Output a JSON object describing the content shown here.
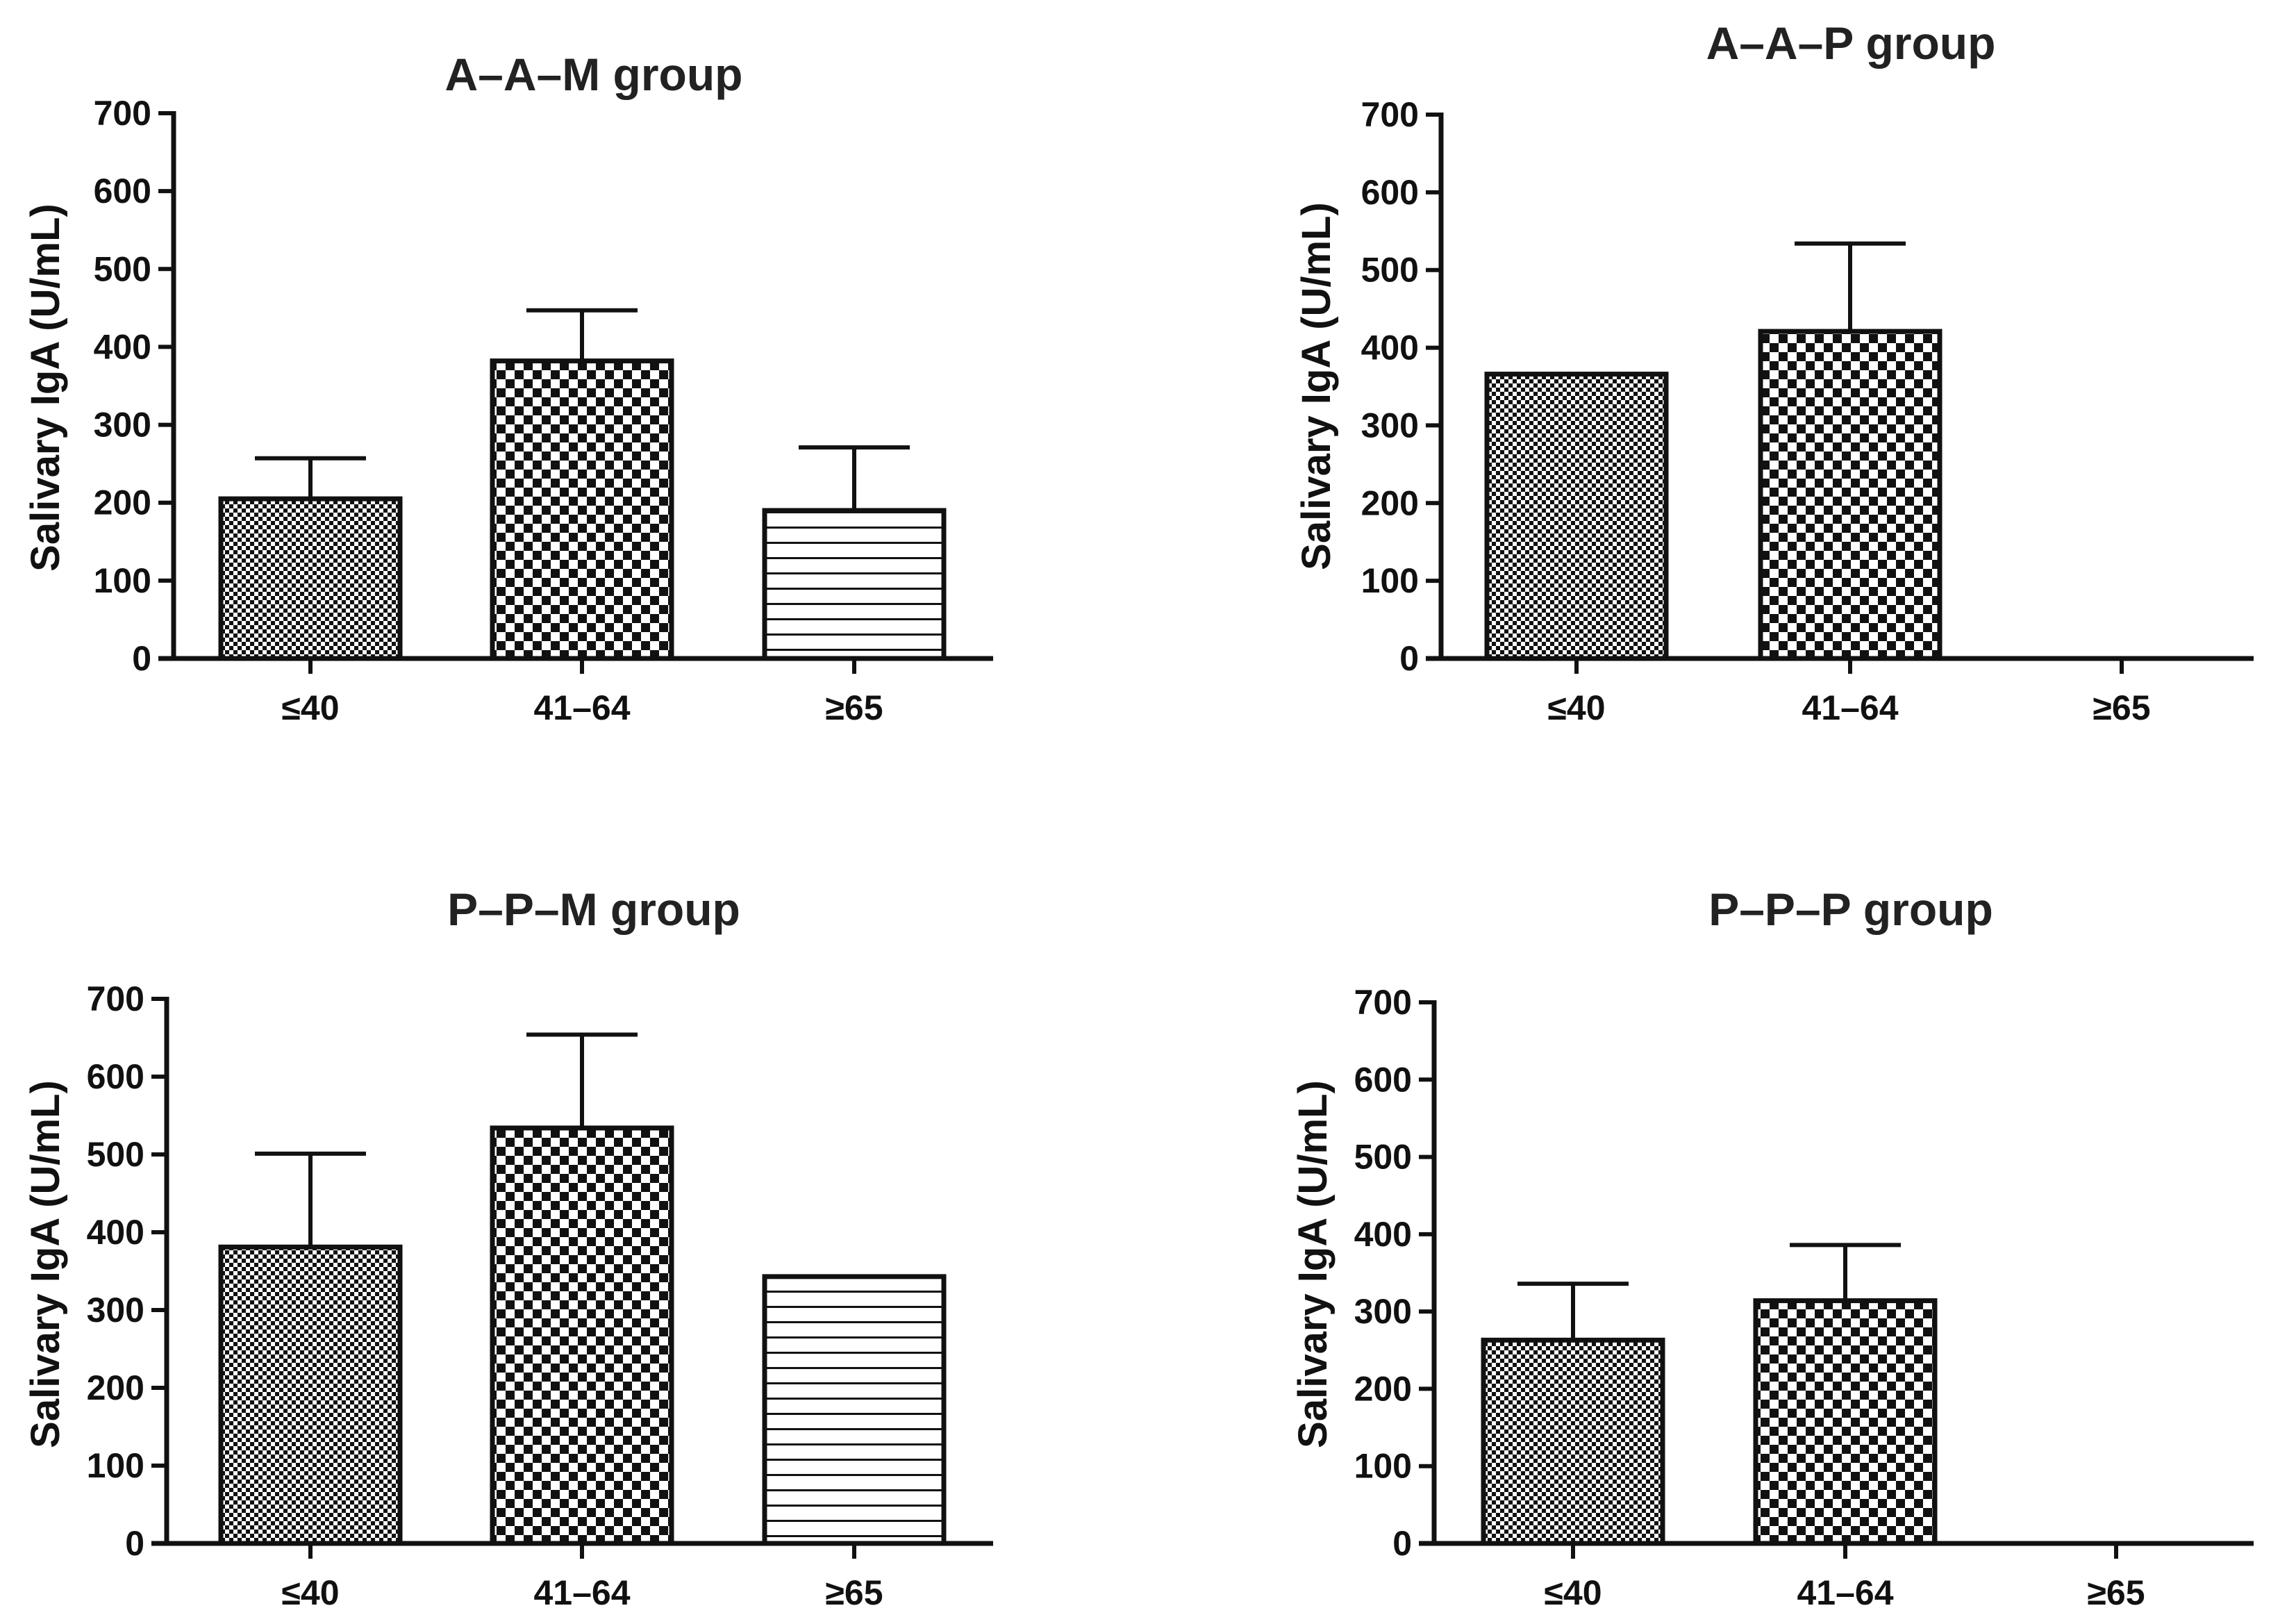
{
  "figure": {
    "panels": 4
  },
  "chart_data": [
    {
      "type": "bar",
      "title": "A–A–M group",
      "xlabel": "",
      "ylabel": "Salivary IgA (U/mL)",
      "categories": [
        "≤40",
        "41–64",
        "≥65"
      ],
      "values": [
        205,
        382,
        190
      ],
      "error_upper": [
        257,
        447,
        271
      ],
      "patterns": [
        "fine-check",
        "coarse-check",
        "horizontal-lines"
      ],
      "ylim": [
        0,
        700
      ],
      "yticks": [
        "0",
        "100",
        "200",
        "300",
        "400",
        "500",
        "600",
        "700"
      ],
      "grid": false,
      "legend": "none"
    },
    {
      "type": "bar",
      "title": "A–A–P group",
      "xlabel": "",
      "ylabel": "Salivary IgA (U/mL)",
      "categories": [
        "≤40",
        "41–64",
        "≥65"
      ],
      "values": [
        366,
        421,
        null
      ],
      "error_upper": [
        null,
        534,
        null
      ],
      "patterns": [
        "fine-check",
        "coarse-check",
        "horizontal-lines"
      ],
      "ylim": [
        0,
        700
      ],
      "yticks": [
        "0",
        "100",
        "200",
        "300",
        "400",
        "500",
        "600",
        "700"
      ],
      "grid": false,
      "legend": "none"
    },
    {
      "type": "bar",
      "title": "P–P–M group",
      "xlabel": "",
      "ylabel": "Salivary IgA (U/mL)",
      "categories": [
        "≤40",
        "41–64",
        "≥65"
      ],
      "values": [
        381,
        534,
        343
      ],
      "error_upper": [
        501,
        654,
        null
      ],
      "patterns": [
        "fine-check",
        "coarse-check",
        "horizontal-lines"
      ],
      "ylim": [
        0,
        700
      ],
      "yticks": [
        "0",
        "100",
        "200",
        "300",
        "400",
        "500",
        "600",
        "700"
      ],
      "grid": false,
      "legend": "none"
    },
    {
      "type": "bar",
      "title": "P–P–P group",
      "xlabel": "",
      "ylabel": "Salivary IgA (U/mL)",
      "categories": [
        "≤40",
        "41–64",
        "≥65"
      ],
      "values": [
        263,
        314,
        null
      ],
      "error_upper": [
        336,
        386,
        null
      ],
      "patterns": [
        "fine-check",
        "coarse-check",
        "horizontal-lines"
      ],
      "ylim": [
        0,
        700
      ],
      "yticks": [
        "0",
        "100",
        "200",
        "300",
        "400",
        "500",
        "600",
        "700"
      ],
      "grid": false,
      "legend": "none"
    }
  ],
  "colors": {
    "ink": "#111111",
    "title": "#222222",
    "fill": "#ffffff"
  }
}
